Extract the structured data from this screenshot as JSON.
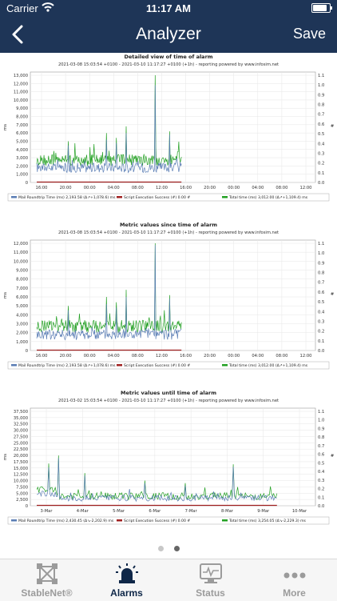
{
  "status_bar": {
    "carrier": "Carrier",
    "time": "11:17 AM",
    "battery_level": 0.92
  },
  "nav": {
    "title": "Analyzer",
    "save_label": "Save",
    "back_icon": "chevron-left-icon"
  },
  "colors": {
    "navbar": "#1e3557",
    "series_mail": "#5a7db4",
    "series_total": "#23a023",
    "series_script": "#a02020",
    "active_tab": "#0f2748",
    "inactive_tab": "#9b9b9b"
  },
  "chart_data": [
    {
      "type": "line",
      "title": "Detailed view of time of alarm",
      "subtitle": "2021-03-08 15:03:54 +0100 - 2021-03-10 11:17:27 +0100 (+1h) - reporting powered by www.infosim.net",
      "ylabel": "ms",
      "y2label": "#",
      "ylim": [
        0,
        13000
      ],
      "y2lim": [
        0,
        1.1
      ],
      "yticks": [
        "0",
        "1,000",
        "2,000",
        "3,000",
        "4,000",
        "5,000",
        "6,000",
        "7,000",
        "8,000",
        "9,000",
        "10,000",
        "11,000",
        "12,000",
        "13,000"
      ],
      "y2ticks": [
        "0.0",
        "0.1",
        "0.2",
        "0.3",
        "0.4",
        "0.5",
        "0.6",
        "0.7",
        "0.8",
        "0.9",
        "1.0",
        "1.1"
      ],
      "xticks": [
        "16:00",
        "20:00",
        "00:00",
        "04:00",
        "08:00",
        "12:00",
        "16:00",
        "20:00",
        "00:00",
        "04:00",
        "08:00",
        "12:00"
      ],
      "legend": [
        "Mail Roundtrip Time (ms) 2,193.58 (Δ↗+1,078.6) ms",
        "Script Execution Success (#) 0.00 #",
        "Total time (ms) 3,012.00 (Δ↗+1,109.4) ms"
      ],
      "series": [
        {
          "name": "Mail Roundtrip Time (ms)",
          "baseline": 1800,
          "spread": 600,
          "spikes": [
            [
              0.22,
              4500
            ],
            [
              0.48,
              5200
            ],
            [
              0.55,
              4800
            ],
            [
              0.62,
              6000
            ],
            [
              0.82,
              11800
            ],
            [
              0.92,
              5800
            ]
          ]
        },
        {
          "name": "Total time (ms)",
          "baseline": 2700,
          "spread": 700,
          "spikes": [
            [
              0.22,
              5000
            ],
            [
              0.48,
              6000
            ],
            [
              0.55,
              5400
            ],
            [
              0.62,
              6800
            ],
            [
              0.82,
              13000
            ],
            [
              0.92,
              6200
            ]
          ]
        },
        {
          "name": "Script Execution Success (#)",
          "value": 0
        }
      ]
    },
    {
      "type": "line",
      "title": "Metric values since time of alarm",
      "subtitle": "2021-03-08 15:03:54 +0100 - 2021-03-10 11:17:27 +0100 (+1h) - reporting powered by www.infosim.net",
      "ylabel": "ms",
      "y2label": "#",
      "ylim": [
        0,
        12000
      ],
      "y2lim": [
        0,
        1.1
      ],
      "yticks": [
        "0",
        "1,000",
        "2,000",
        "3,000",
        "4,000",
        "5,000",
        "6,000",
        "7,000",
        "8,000",
        "9,000",
        "10,000",
        "11,000",
        "12,000"
      ],
      "y2ticks": [
        "0.0",
        "0.1",
        "0.2",
        "0.3",
        "0.4",
        "0.5",
        "0.6",
        "0.7",
        "0.8",
        "0.9",
        "1.0",
        "1.1"
      ],
      "xticks": [
        "16:00",
        "20:00",
        "00:00",
        "04:00",
        "08:00",
        "12:00",
        "16:00",
        "20:00",
        "00:00",
        "04:00",
        "08:00",
        "12:00"
      ],
      "legend": [
        "Mail Roundtrip Time (ms) 2,193.58 (Δ↗+1,078.6) ms",
        "Script Execution Success (#) 0.00 #",
        "Total time (ms) 3,012.00 (Δ↗+1,109.4) ms"
      ],
      "series": [
        {
          "name": "Mail Roundtrip Time (ms)",
          "baseline": 1800,
          "spread": 600,
          "spikes": [
            [
              0.22,
              4500
            ],
            [
              0.48,
              5200
            ],
            [
              0.55,
              4800
            ],
            [
              0.62,
              6000
            ],
            [
              0.82,
              11800
            ],
            [
              0.92,
              5800
            ]
          ]
        },
        {
          "name": "Total time (ms)",
          "baseline": 2700,
          "spread": 700,
          "spikes": [
            [
              0.22,
              5000
            ],
            [
              0.48,
              6000
            ],
            [
              0.55,
              5400
            ],
            [
              0.62,
              6800
            ],
            [
              0.82,
              12200
            ],
            [
              0.92,
              6200
            ]
          ]
        },
        {
          "name": "Script Execution Success (#)",
          "value": 0
        }
      ]
    },
    {
      "type": "line",
      "title": "Metric values until time of alarm",
      "subtitle": "2021-03-02 15:03:54 +0100 - 2021-03-10 11:17:27 +0100 (+1h) - reporting powered by www.infosim.net",
      "ylabel": "ms",
      "y2label": "#",
      "ylim": [
        0,
        37500
      ],
      "y2lim": [
        0,
        1.1
      ],
      "yticks": [
        "0",
        "2,500",
        "5,000",
        "7,500",
        "10,000",
        "12,500",
        "15,000",
        "17,500",
        "20,000",
        "22,500",
        "25,000",
        "27,500",
        "30,000",
        "32,500",
        "35,000",
        "37,500"
      ],
      "y2ticks": [
        "0.0",
        "0.1",
        "0.2",
        "0.3",
        "0.4",
        "0.5",
        "0.6",
        "0.7",
        "0.8",
        "0.9",
        "1.0",
        "1.1"
      ],
      "xticks": [
        "3-Mar",
        "4-Mar",
        "5-Mar",
        "6-Mar",
        "7-Mar",
        "8-Mar",
        "9-Mar",
        "10-Mar"
      ],
      "legend": [
        "Mail Roundtrip Time (ms) 2,430.45 (Δ↘-2,202.9) ms",
        "Script Execution Success (#) 0.00 #",
        "Total time (ms) 3,254.05 (Δ↘-2,229.3) ms"
      ],
      "series": [
        {
          "name": "Mail Roundtrip Time (ms)",
          "baseline": 3000,
          "spread": 1200,
          "spikes": [
            [
              0.05,
              13500
            ],
            [
              0.09,
              19000
            ],
            [
              0.2,
              12000
            ],
            [
              0.45,
              9000
            ],
            [
              0.62,
              8000
            ],
            [
              0.82,
              15500
            ],
            [
              0.97,
              3500
            ]
          ]
        },
        {
          "name": "Total time (ms)",
          "baseline": 3800,
          "spread": 1400,
          "spikes": [
            [
              0.05,
              14500
            ],
            [
              0.09,
              20000
            ],
            [
              0.2,
              13000
            ],
            [
              0.45,
              10000
            ],
            [
              0.62,
              9000
            ],
            [
              0.82,
              16500
            ],
            [
              0.97,
              4200
            ]
          ]
        },
        {
          "name": "Script Execution Success (#)",
          "value": 0
        }
      ]
    }
  ],
  "pager": {
    "pages": 2,
    "current": 1
  },
  "tabs": [
    {
      "label": "StableNet®",
      "icon": "stablenet-icon",
      "active": false
    },
    {
      "label": "Alarms",
      "icon": "siren-icon",
      "active": true
    },
    {
      "label": "Status",
      "icon": "monitor-icon",
      "active": false
    },
    {
      "label": "More",
      "icon": "more-dots-icon",
      "active": false
    }
  ]
}
